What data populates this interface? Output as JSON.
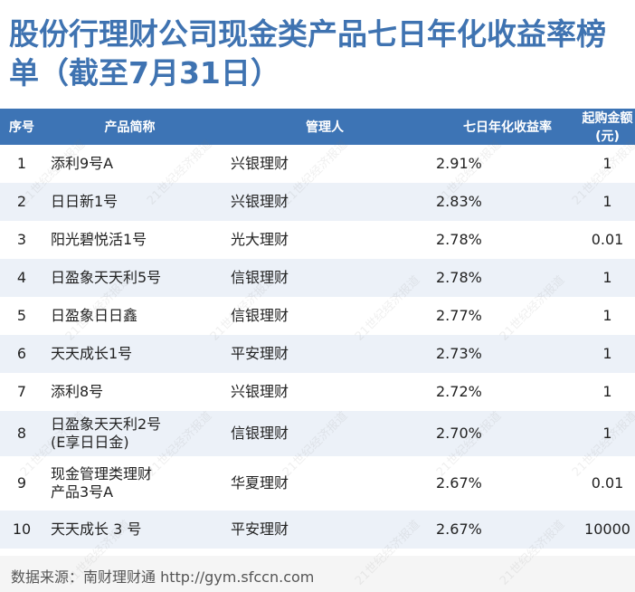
{
  "title": "股份行理财公司现金类产品七日年化收益率榜单（截至7月31日）",
  "table": {
    "headers": {
      "rank": "序号",
      "name": "产品简称",
      "manager": "管理人",
      "yield": "七日年化收益率",
      "min": "起购金额(元)"
    },
    "rows": [
      {
        "rank": "1",
        "name": "添利9号A",
        "manager": "兴银理财",
        "yield": "2.91%",
        "min": "1"
      },
      {
        "rank": "2",
        "name": "日日新1号",
        "manager": "兴银理财",
        "yield": "2.83%",
        "min": "1"
      },
      {
        "rank": "3",
        "name": "阳光碧悦活1号",
        "manager": "光大理财",
        "yield": "2.78%",
        "min": "0.01"
      },
      {
        "rank": "4",
        "name": "日盈象天天利5号",
        "manager": "信银理财",
        "yield": "2.78%",
        "min": "1"
      },
      {
        "rank": "5",
        "name": "日盈象日日鑫",
        "manager": "信银理财",
        "yield": "2.77%",
        "min": "1"
      },
      {
        "rank": "6",
        "name": "天天成长1号",
        "manager": "平安理财",
        "yield": "2.73%",
        "min": "1"
      },
      {
        "rank": "7",
        "name": "添利8号",
        "manager": "兴银理财",
        "yield": "2.72%",
        "min": "1"
      },
      {
        "rank": "8",
        "name": "日盈象天天利2号 (E享日日金)",
        "name_line1": "日盈象天天利2号",
        "name_line2": "(E享日日金)",
        "manager": "信银理财",
        "yield": "2.70%",
        "min": "1"
      },
      {
        "rank": "9",
        "name": "现金管理类理财产品3号A",
        "name_line1": "现金管理类理财",
        "name_line2": "产品3号A",
        "manager": "华夏理财",
        "yield": "2.67%",
        "min": "0.01"
      },
      {
        "rank": "10",
        "name": "天天成长 3 号",
        "manager": "平安理财",
        "yield": "2.67%",
        "min": "10000"
      }
    ]
  },
  "footer": "数据来源：南财理财通 http://gym.sfccn.com",
  "watermark": "21世纪经济报道",
  "colors": {
    "title": "#3f73b1",
    "header_bg": "#3d74b5",
    "stripe": "#ecf1f8"
  }
}
